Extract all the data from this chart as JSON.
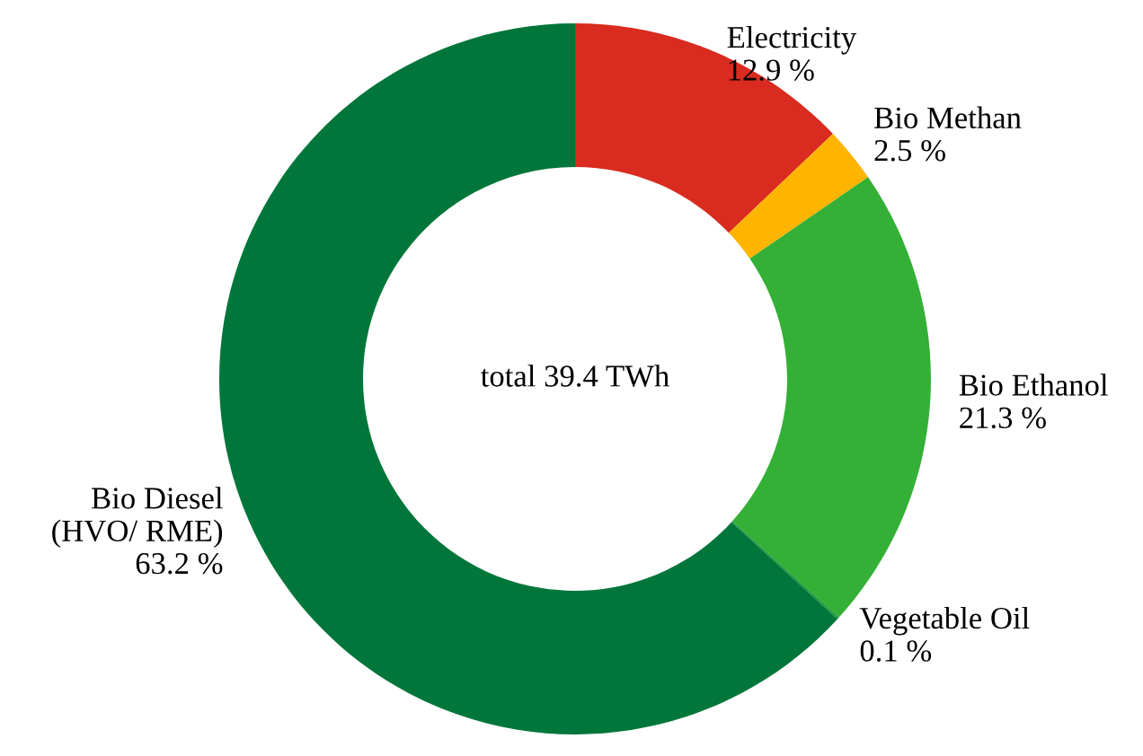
{
  "chart_data": {
    "type": "donut",
    "categories": [
      "Electricity",
      "Bio Methan",
      "Bio Ethanol",
      "Vegetable Oil",
      "Bio Diesel\n(HVO/ RME)"
    ],
    "values": [
      12.9,
      2.5,
      21.3,
      0.1,
      63.2
    ],
    "value_labels": [
      "12.9 %",
      "2.5 %",
      "21.3 %",
      "0.1 %",
      "63.2 %"
    ],
    "colors": [
      "#d92b1f",
      "#ffb400",
      "#33b035",
      "#1e9a3c",
      "#00763a"
    ],
    "annotations": [
      "total 39.4 TWh"
    ],
    "legend": false
  }
}
